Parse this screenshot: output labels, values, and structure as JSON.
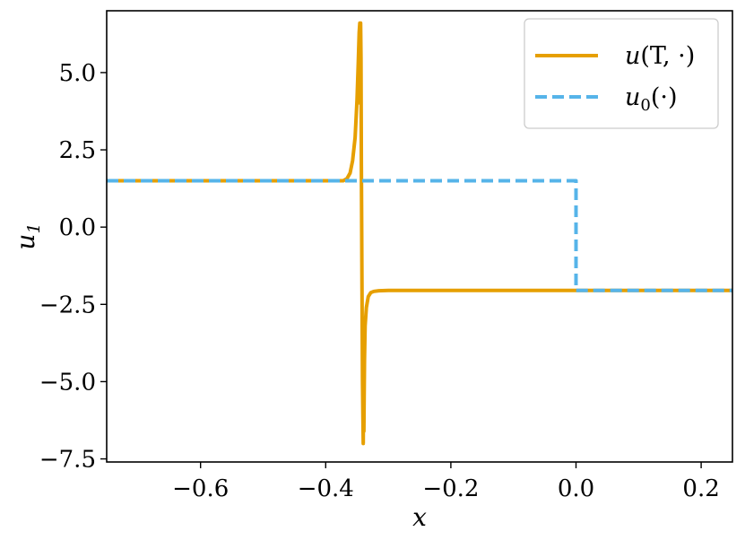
{
  "chart_data": {
    "type": "line",
    "xlabel": "x",
    "ylabel": "u1",
    "ylabel_base": "u",
    "ylabel_sub": "1",
    "xlim": [
      -0.75,
      0.25
    ],
    "ylim": [
      -7.6,
      7.0
    ],
    "xticks": [
      -0.6,
      -0.4,
      -0.2,
      0.0,
      0.2
    ],
    "xtick_labels": [
      "−0.6",
      "−0.4",
      "−0.2",
      "0.0",
      "0.2"
    ],
    "yticks": [
      5.0,
      2.5,
      0.0,
      -2.5,
      -5.0,
      -7.5
    ],
    "ytick_labels": [
      "5.0",
      "2.5",
      "0.0",
      "−2.5",
      "−5.0",
      "−7.5"
    ],
    "grid": false,
    "legend_placement": "top-right",
    "series": [
      {
        "name": "u(T, ·)",
        "color": "#E69F00",
        "style": "solid",
        "x": [
          -0.75,
          -0.372,
          -0.366,
          -0.361,
          -0.357,
          -0.353,
          -0.35,
          -0.348,
          -0.3465,
          -0.3455,
          -0.345,
          -0.3445,
          -0.3442,
          -0.3436,
          -0.343,
          -0.342,
          -0.3412,
          -0.3405,
          -0.34,
          -0.3396,
          -0.339,
          -0.3385,
          -0.338,
          -0.337,
          -0.335,
          -0.332,
          -0.328,
          -0.323,
          -0.315,
          -0.3,
          0.25
        ],
        "y": [
          1.5,
          1.5,
          1.57,
          1.75,
          2.15,
          2.9,
          4.1,
          5.3,
          6.3,
          6.6,
          6.55,
          4.0,
          6.6,
          5.5,
          2.0,
          -2.0,
          -5.0,
          -6.2,
          -7.0,
          -5.2,
          -6.6,
          -5.4,
          -4.3,
          -3.2,
          -2.6,
          -2.25,
          -2.12,
          -2.08,
          -2.06,
          -2.05,
          -2.05
        ]
      },
      {
        "name": "u₀(·)",
        "color": "#56B4E9",
        "style": "dashed",
        "x": [
          -0.75,
          0.0,
          0.0,
          0.25
        ],
        "y": [
          1.5,
          1.5,
          -2.05,
          -2.05
        ]
      }
    ],
    "legend_entries": [
      {
        "base": "u",
        "sub": "",
        "args": "(T, ·)"
      },
      {
        "base": "u",
        "sub": "0",
        "args": "(·)"
      }
    ]
  }
}
